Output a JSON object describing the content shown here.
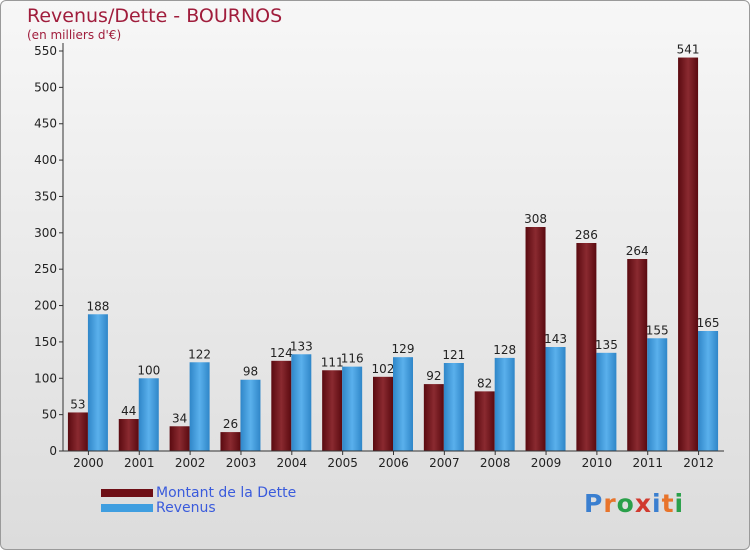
{
  "header": {
    "title": "Revenus/Dette - BOURNOS",
    "subtitle": "(en milliers d'€)"
  },
  "legend": {
    "debt_label": "Montant de la Dette",
    "revenue_label": "Revenus"
  },
  "logo": {
    "letters": [
      "P",
      "r",
      "o",
      "x",
      "i",
      "t",
      "i"
    ],
    "colors": [
      "#3a7fd0",
      "#e8742b",
      "#2aa04a",
      "#d13a2f",
      "#3a7fd0",
      "#e8742b",
      "#2aa04a"
    ]
  },
  "colors": {
    "debt": "#7a1018",
    "revenue": "#3f9ee0",
    "axis_text": "#222222"
  },
  "chart_data": {
    "type": "bar",
    "title": "Revenus/Dette - BOURNOS",
    "ylabel": "(en milliers d'€)",
    "xlabel": "",
    "ylim": [
      0,
      550
    ],
    "ytick_step": 50,
    "grid": false,
    "legend_position": "bottom-left",
    "categories": [
      "2000",
      "2001",
      "2002",
      "2003",
      "2004",
      "2005",
      "2006",
      "2007",
      "2008",
      "2009",
      "2010",
      "2011",
      "2012"
    ],
    "series": [
      {
        "name": "Montant de la Dette",
        "values": [
          53,
          44,
          34,
          26,
          124,
          111,
          102,
          92,
          82,
          308,
          286,
          264,
          541
        ]
      },
      {
        "name": "Revenus",
        "values": [
          188,
          100,
          122,
          98,
          133,
          116,
          129,
          121,
          128,
          143,
          135,
          155,
          165
        ]
      }
    ]
  }
}
